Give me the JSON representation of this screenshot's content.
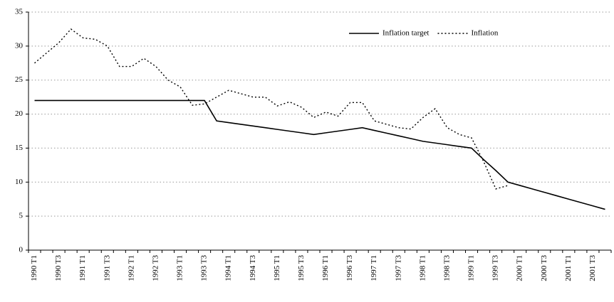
{
  "chart_data": {
    "type": "line",
    "categories": [
      "1990 T1",
      null,
      "1990 T3",
      null,
      "1991 T1",
      null,
      "1991 T3",
      null,
      "1992 T1",
      null,
      "1992 T3",
      null,
      "1993 T1",
      null,
      "1993 T3",
      null,
      "1994 T1",
      null,
      "1994 T3",
      null,
      "1995 T1",
      null,
      "1995 T3",
      null,
      "1996 T1",
      null,
      "1996 T3",
      null,
      "1997 T1",
      null,
      "1997 T3",
      null,
      "1998 T1",
      null,
      "1998 T3",
      null,
      "1999 T1",
      null,
      "1999 T3",
      null,
      "2000 T1",
      null,
      "2000 T3",
      null,
      "2001 T1",
      null,
      "2001 T3",
      null
    ],
    "series": [
      {
        "name": "Inflation target",
        "color": "#000000",
        "style": "solid",
        "values": [
          22,
          22,
          22,
          22,
          22,
          22,
          22,
          22,
          22,
          22,
          22,
          22,
          22,
          22,
          22,
          19,
          18.75,
          18.5,
          18.25,
          18,
          17.75,
          17.5,
          17.25,
          17,
          17.25,
          17.5,
          17.75,
          18,
          17.6,
          17.2,
          16.8,
          16.4,
          16,
          15.75,
          15.5,
          15.25,
          15,
          13.3,
          11.7,
          10,
          9.5,
          9,
          8.5,
          8,
          7.5,
          7,
          6.5,
          6
        ]
      },
      {
        "name": "Inflation",
        "color": "#000000",
        "style": "dotted",
        "values": [
          27.5,
          29,
          30.5,
          32.5,
          31.2,
          31,
          30,
          27,
          27,
          28.2,
          27,
          25,
          24,
          21.3,
          21.5,
          22.5,
          23.5,
          23,
          22.5,
          22.5,
          21.2,
          21.8,
          21,
          19.5,
          20.3,
          19.7,
          21.7,
          21.7,
          19,
          18.5,
          18,
          17.8,
          19.5,
          20.8,
          18,
          17,
          16.5,
          13,
          9,
          9.5,
          null,
          null,
          null,
          null,
          null,
          null,
          null,
          null
        ]
      }
    ],
    "ylim": [
      0,
      35
    ],
    "yticks": [
      0,
      5,
      10,
      15,
      20,
      25,
      30,
      35
    ],
    "grid": true,
    "legend": "upper right"
  }
}
